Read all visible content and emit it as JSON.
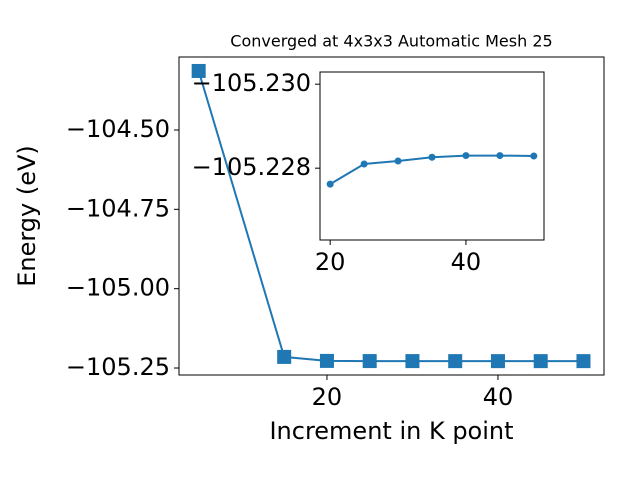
{
  "chart_data": [
    {
      "type": "line",
      "title": "Converged at 4x3x3 Automatic Mesh 25",
      "x_label": "Increment in K point",
      "y_label": "Energy (eV)",
      "x": [
        5,
        15,
        20,
        25,
        30,
        35,
        40,
        45,
        50
      ],
      "series": [
        {
          "color": "#1f77b4",
          "marker": "square",
          "values": [
            -104.314,
            -105.215,
            -105.2276,
            -105.2281,
            -105.2282,
            -105.2283,
            -105.2283,
            -105.2283,
            -105.2283
          ]
        }
      ],
      "xlim": [
        2.7,
        52.4
      ],
      "xticks": [
        20,
        40
      ],
      "ylim": [
        -105.272,
        -104.27
      ],
      "yticks": [
        {
          "value": -104.5,
          "label": "−104.50"
        },
        {
          "value": -104.75,
          "label": "−104.75"
        },
        {
          "value": -105.0,
          "label": "−105.00"
        },
        {
          "value": -105.25,
          "label": "−105.25"
        }
      ]
    },
    {
      "type": "line",
      "x": [
        20,
        25,
        30,
        35,
        40,
        45,
        50
      ],
      "series": [
        {
          "color": "#1f77b4",
          "marker": "circle",
          "values": [
            -105.22762,
            -105.2281,
            -105.22817,
            -105.22826,
            -105.2283,
            -105.2283,
            -105.22829
          ]
        }
      ],
      "xlim": [
        18.5,
        51.5
      ],
      "xticks": [
        20,
        40
      ],
      "ylim": [
        -105.22629,
        -105.23029
      ],
      "yticks": [
        {
          "value": -105.23,
          "label": "−105.230"
        },
        {
          "value": -105.228,
          "label": "−105.228"
        }
      ]
    }
  ]
}
